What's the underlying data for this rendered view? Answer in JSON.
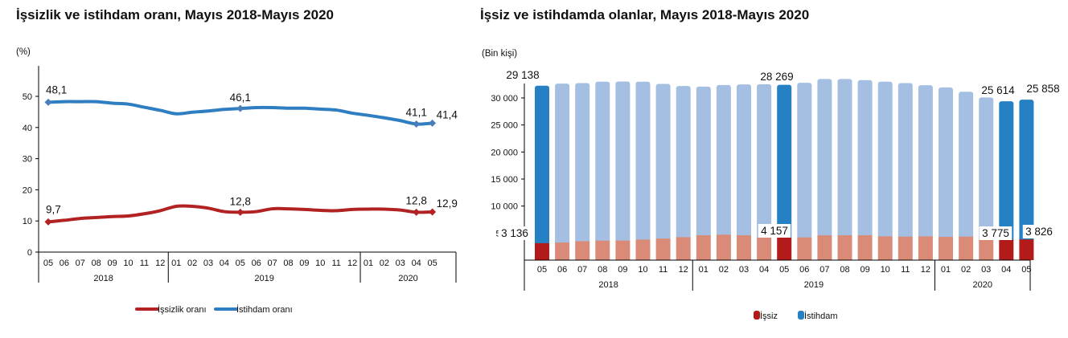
{
  "left_chart": {
    "title": "İşsizlik ve istihdam oranı, Mayıs 2018-Mayıs 2020",
    "unit": "(%)",
    "legend": [
      "İşsizlik oranı",
      "İstihdam oranı"
    ]
  },
  "right_chart": {
    "title": "İşsiz ve istihdamda olanlar, Mayıs 2018-Mayıs 2020",
    "unit": "(Bin kişi)",
    "legend": [
      "İşsiz",
      "İstihdam"
    ]
  },
  "colors": {
    "unemployment_line": "#B22222",
    "employment_line": "#2E7EC1",
    "employment_bar_highlight": "#2680C4",
    "employment_bar": "#A4BFE2",
    "unemployed_bar_highlight": "#B31B1B",
    "unemployed_bar": "#D98B78"
  },
  "chart_data": [
    {
      "type": "line",
      "title": "İşsizlik ve istihdam oranı, Mayıs 2018-Mayıs 2020",
      "ylabel": "(%)",
      "xlabel": "",
      "ylim": [
        0,
        55
      ],
      "yticks": [
        0,
        10,
        20,
        30,
        40,
        50
      ],
      "grid": false,
      "legend_position": "bottom",
      "categories": [
        "05",
        "06",
        "07",
        "08",
        "09",
        "10",
        "11",
        "12",
        "01",
        "02",
        "03",
        "04",
        "05",
        "06",
        "07",
        "08",
        "09",
        "10",
        "11",
        "12",
        "01",
        "02",
        "03",
        "04",
        "05"
      ],
      "year_groups": [
        {
          "year": "2018",
          "start": 0,
          "end": 7
        },
        {
          "year": "2019",
          "start": 8,
          "end": 19
        },
        {
          "year": "2020",
          "start": 20,
          "end": 24
        }
      ],
      "series": [
        {
          "name": "İşsizlik oranı",
          "values": [
            9.7,
            10.2,
            10.8,
            11.1,
            11.4,
            11.6,
            12.3,
            13.3,
            14.7,
            14.7,
            14.1,
            13.0,
            12.8,
            13.0,
            13.9,
            13.9,
            13.7,
            13.4,
            13.3,
            13.7,
            13.8,
            13.8,
            13.5,
            12.8,
            12.9
          ],
          "labels": {
            "0": "9,7",
            "12": "12,8",
            "23": "12,8",
            "24": "12,9"
          }
        },
        {
          "name": "İstihdam oranı",
          "values": [
            48.1,
            48.3,
            48.3,
            48.3,
            47.8,
            47.5,
            46.5,
            45.5,
            44.4,
            44.9,
            45.3,
            45.8,
            46.1,
            46.4,
            46.4,
            46.2,
            46.2,
            45.9,
            45.6,
            44.6,
            43.9,
            43.1,
            42.2,
            41.1,
            41.4
          ],
          "labels": {
            "0": "48,1",
            "12": "46,1",
            "23": "41,1",
            "24": "41,4"
          }
        }
      ]
    },
    {
      "type": "bar",
      "stacked": true,
      "title": "İşsiz ve istihdamda olanlar, Mayıs 2018-Mayıs 2020",
      "ylabel": "(Bin kişi)",
      "xlabel": "",
      "ylim": [
        0,
        33000
      ],
      "yticks": [
        5000,
        10000,
        15000,
        20000,
        25000,
        30000
      ],
      "ytick_labels": [
        "5 000",
        "10 000",
        "15 000",
        "20 000",
        "25 000",
        "30 000"
      ],
      "grid": false,
      "legend_position": "bottom",
      "categories": [
        "05",
        "06",
        "07",
        "08",
        "09",
        "10",
        "11",
        "12",
        "01",
        "02",
        "03",
        "04",
        "05",
        "06",
        "07",
        "08",
        "09",
        "10",
        "11",
        "12",
        "01",
        "02",
        "03",
        "04",
        "05"
      ],
      "year_groups": [
        {
          "year": "2018",
          "start": 0,
          "end": 7
        },
        {
          "year": "2019",
          "start": 8,
          "end": 19
        },
        {
          "year": "2020",
          "start": 20,
          "end": 24
        }
      ],
      "highlighted_indices": [
        0,
        12,
        23,
        24
      ],
      "series": [
        {
          "name": "İşsiz",
          "values": [
            3136,
            3250,
            3500,
            3600,
            3620,
            3800,
            4000,
            4250,
            4600,
            4700,
            4600,
            4150,
            4157,
            4200,
            4600,
            4600,
            4600,
            4400,
            4350,
            4400,
            4300,
            4350,
            4100,
            3775,
            3826
          ],
          "labels": {
            "0": "3 136",
            "12": "4 157",
            "23": "3 775",
            "24": "3 826"
          }
        },
        {
          "name": "İstihdam",
          "values": [
            29138,
            29400,
            29250,
            29400,
            29420,
            29200,
            28600,
            27960,
            27500,
            27700,
            27900,
            28400,
            28269,
            28600,
            28900,
            28900,
            28700,
            28600,
            28400,
            27960,
            27640,
            26800,
            26000,
            25614,
            25858
          ],
          "labels": {
            "0": "29 138",
            "12": "28 269",
            "23": "25 614",
            "24": "25 858"
          }
        }
      ]
    }
  ]
}
